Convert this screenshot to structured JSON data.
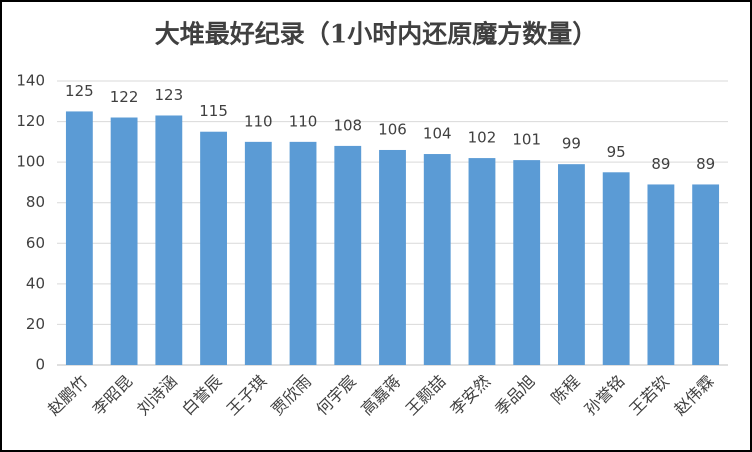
{
  "chart_data": {
    "type": "bar",
    "title": "大堆最好纪录（1小时内还原魔方数量）",
    "categories": [
      "赵鹏竹",
      "李昭昆",
      "刘诗涵",
      "白誉辰",
      "王子琪",
      "贾欣雨",
      "何宇宸",
      "高嘉蒋",
      "王颢喆",
      "李安然",
      "季品旭",
      "陈程",
      "孙誉铭",
      "王若钦",
      "赵伟霖"
    ],
    "values": [
      125,
      122,
      123,
      115,
      110,
      110,
      108,
      106,
      104,
      102,
      101,
      99,
      95,
      89,
      89
    ],
    "color": "#5b9bd5",
    "ylim": [
      0,
      140
    ],
    "yticks": [
      0,
      20,
      40,
      60,
      80,
      100,
      120,
      140
    ],
    "grid": true
  }
}
